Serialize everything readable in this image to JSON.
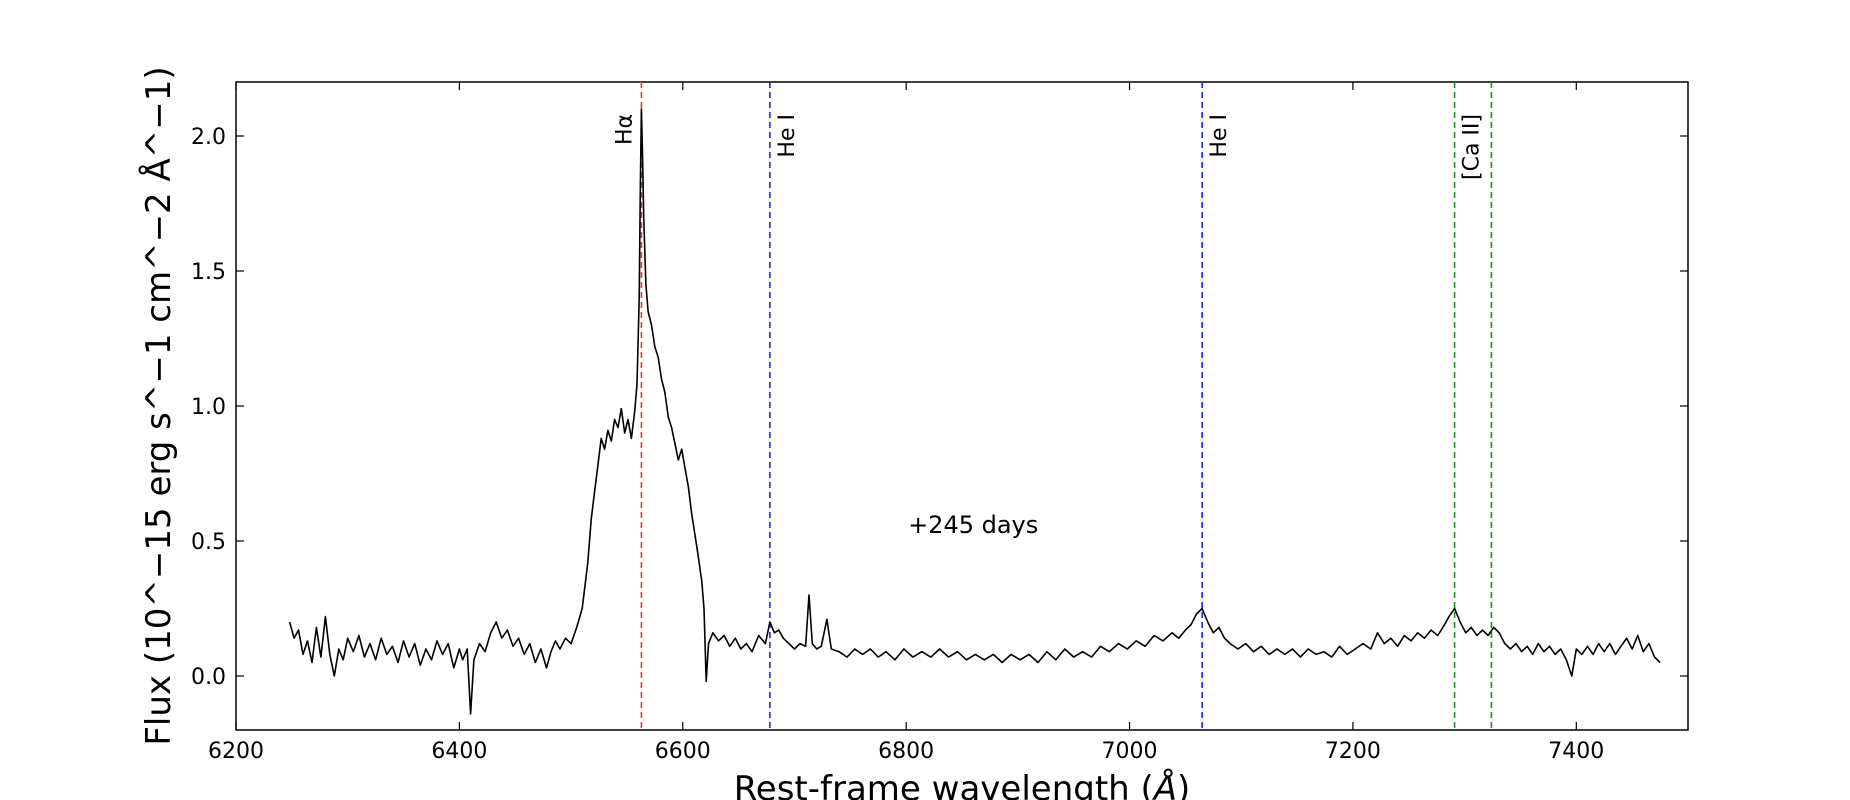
{
  "chart_data": {
    "type": "line",
    "xlabel": "Rest-frame wavelength",
    "xlabel_unit_symbol": "Å",
    "ylabel": "Flux",
    "ylabel_units": "10^−15 erg s^−1 cm^−2 Å^−1",
    "xlim": [
      6200,
      7500
    ],
    "ylim": [
      -0.2,
      2.2
    ],
    "xticks": [
      6200,
      6400,
      6600,
      6800,
      7000,
      7200,
      7400
    ],
    "yticks": [
      0.0,
      0.5,
      1.0,
      1.5,
      2.0
    ],
    "xtick_labels": [
      "6200",
      "6400",
      "6600",
      "6800",
      "7000",
      "7200",
      "7400"
    ],
    "ytick_labels": [
      "0.0",
      "0.5",
      "1.0",
      "1.5",
      "2.0"
    ],
    "grid": false,
    "annotation": {
      "text": "+245 days",
      "x": 6860,
      "y": 0.53
    },
    "reference_lines": [
      {
        "label": "Hα",
        "x": 6563,
        "color": "#e8343a",
        "label_side": "left"
      },
      {
        "label": "He I",
        "x": 6678,
        "color": "#2323e6",
        "label_side": "right"
      },
      {
        "label": "He I",
        "x": 7065,
        "color": "#2323e6",
        "label_side": "right"
      },
      {
        "label": "[Ca II]",
        "x": 7291,
        "color": "#228b22",
        "label_side": "right"
      },
      {
        "label": "",
        "x": 7324,
        "color": "#228b22",
        "label_side": "none"
      }
    ],
    "series": [
      {
        "color": "#000000",
        "points": [
          [
            6248,
            0.2
          ],
          [
            6252,
            0.14
          ],
          [
            6256,
            0.17
          ],
          [
            6260,
            0.08
          ],
          [
            6264,
            0.13
          ],
          [
            6268,
            0.05
          ],
          [
            6272,
            0.18
          ],
          [
            6276,
            0.07
          ],
          [
            6280,
            0.22
          ],
          [
            6284,
            0.08
          ],
          [
            6288,
            0.0
          ],
          [
            6292,
            0.1
          ],
          [
            6296,
            0.06
          ],
          [
            6300,
            0.14
          ],
          [
            6305,
            0.09
          ],
          [
            6310,
            0.15
          ],
          [
            6315,
            0.07
          ],
          [
            6320,
            0.12
          ],
          [
            6325,
            0.06
          ],
          [
            6330,
            0.14
          ],
          [
            6335,
            0.08
          ],
          [
            6340,
            0.11
          ],
          [
            6345,
            0.05
          ],
          [
            6350,
            0.13
          ],
          [
            6355,
            0.07
          ],
          [
            6360,
            0.12
          ],
          [
            6365,
            0.04
          ],
          [
            6370,
            0.1
          ],
          [
            6375,
            0.06
          ],
          [
            6380,
            0.13
          ],
          [
            6385,
            0.08
          ],
          [
            6390,
            0.12
          ],
          [
            6395,
            0.03
          ],
          [
            6400,
            0.1
          ],
          [
            6403,
            0.06
          ],
          [
            6407,
            0.1
          ],
          [
            6410,
            -0.14
          ],
          [
            6413,
            0.06
          ],
          [
            6418,
            0.12
          ],
          [
            6423,
            0.09
          ],
          [
            6428,
            0.16
          ],
          [
            6433,
            0.2
          ],
          [
            6438,
            0.14
          ],
          [
            6443,
            0.17
          ],
          [
            6448,
            0.11
          ],
          [
            6453,
            0.14
          ],
          [
            6458,
            0.08
          ],
          [
            6463,
            0.12
          ],
          [
            6468,
            0.05
          ],
          [
            6473,
            0.1
          ],
          [
            6478,
            0.03
          ],
          [
            6482,
            0.09
          ],
          [
            6486,
            0.13
          ],
          [
            6490,
            0.1
          ],
          [
            6495,
            0.14
          ],
          [
            6500,
            0.12
          ],
          [
            6505,
            0.18
          ],
          [
            6510,
            0.25
          ],
          [
            6515,
            0.42
          ],
          [
            6518,
            0.58
          ],
          [
            6521,
            0.68
          ],
          [
            6524,
            0.78
          ],
          [
            6527,
            0.88
          ],
          [
            6530,
            0.84
          ],
          [
            6533,
            0.91
          ],
          [
            6536,
            0.87
          ],
          [
            6539,
            0.95
          ],
          [
            6542,
            0.92
          ],
          [
            6545,
            0.99
          ],
          [
            6548,
            0.9
          ],
          [
            6551,
            0.95
          ],
          [
            6554,
            0.88
          ],
          [
            6557,
            0.98
          ],
          [
            6559,
            1.08
          ],
          [
            6561,
            1.4
          ],
          [
            6562,
            1.8
          ],
          [
            6563,
            2.1
          ],
          [
            6564,
            1.92
          ],
          [
            6565,
            1.7
          ],
          [
            6567,
            1.45
          ],
          [
            6569,
            1.35
          ],
          [
            6572,
            1.3
          ],
          [
            6575,
            1.22
          ],
          [
            6578,
            1.18
          ],
          [
            6581,
            1.1
          ],
          [
            6584,
            1.05
          ],
          [
            6587,
            0.96
          ],
          [
            6590,
            0.92
          ],
          [
            6593,
            0.86
          ],
          [
            6596,
            0.8
          ],
          [
            6599,
            0.84
          ],
          [
            6602,
            0.77
          ],
          [
            6605,
            0.7
          ],
          [
            6608,
            0.6
          ],
          [
            6611,
            0.52
          ],
          [
            6614,
            0.44
          ],
          [
            6617,
            0.35
          ],
          [
            6619,
            0.25
          ],
          [
            6621,
            -0.02
          ],
          [
            6623,
            0.12
          ],
          [
            6627,
            0.16
          ],
          [
            6632,
            0.13
          ],
          [
            6637,
            0.15
          ],
          [
            6642,
            0.11
          ],
          [
            6647,
            0.14
          ],
          [
            6652,
            0.1
          ],
          [
            6657,
            0.12
          ],
          [
            6662,
            0.09
          ],
          [
            6668,
            0.15
          ],
          [
            6674,
            0.12
          ],
          [
            6678,
            0.2
          ],
          [
            6682,
            0.16
          ],
          [
            6686,
            0.17
          ],
          [
            6690,
            0.14
          ],
          [
            6695,
            0.12
          ],
          [
            6700,
            0.1
          ],
          [
            6705,
            0.12
          ],
          [
            6710,
            0.11
          ],
          [
            6713,
            0.3
          ],
          [
            6716,
            0.12
          ],
          [
            6720,
            0.1
          ],
          [
            6724,
            0.11
          ],
          [
            6729,
            0.21
          ],
          [
            6733,
            0.1
          ],
          [
            6740,
            0.09
          ],
          [
            6747,
            0.07
          ],
          [
            6754,
            0.1
          ],
          [
            6761,
            0.08
          ],
          [
            6768,
            0.1
          ],
          [
            6775,
            0.07
          ],
          [
            6782,
            0.09
          ],
          [
            6790,
            0.06
          ],
          [
            6798,
            0.1
          ],
          [
            6806,
            0.07
          ],
          [
            6814,
            0.09
          ],
          [
            6822,
            0.07
          ],
          [
            6830,
            0.1
          ],
          [
            6838,
            0.07
          ],
          [
            6846,
            0.09
          ],
          [
            6854,
            0.06
          ],
          [
            6862,
            0.08
          ],
          [
            6870,
            0.06
          ],
          [
            6878,
            0.08
          ],
          [
            6886,
            0.05
          ],
          [
            6894,
            0.08
          ],
          [
            6902,
            0.06
          ],
          [
            6910,
            0.08
          ],
          [
            6918,
            0.05
          ],
          [
            6926,
            0.09
          ],
          [
            6934,
            0.06
          ],
          [
            6942,
            0.1
          ],
          [
            6950,
            0.07
          ],
          [
            6958,
            0.09
          ],
          [
            6966,
            0.07
          ],
          [
            6974,
            0.11
          ],
          [
            6982,
            0.09
          ],
          [
            6990,
            0.12
          ],
          [
            6998,
            0.1
          ],
          [
            7006,
            0.13
          ],
          [
            7014,
            0.11
          ],
          [
            7022,
            0.15
          ],
          [
            7030,
            0.13
          ],
          [
            7038,
            0.16
          ],
          [
            7044,
            0.14
          ],
          [
            7050,
            0.17
          ],
          [
            7055,
            0.19
          ],
          [
            7060,
            0.23
          ],
          [
            7065,
            0.25
          ],
          [
            7070,
            0.2
          ],
          [
            7075,
            0.16
          ],
          [
            7080,
            0.18
          ],
          [
            7085,
            0.14
          ],
          [
            7090,
            0.12
          ],
          [
            7097,
            0.1
          ],
          [
            7104,
            0.12
          ],
          [
            7111,
            0.09
          ],
          [
            7118,
            0.11
          ],
          [
            7125,
            0.08
          ],
          [
            7132,
            0.1
          ],
          [
            7139,
            0.08
          ],
          [
            7146,
            0.1
          ],
          [
            7153,
            0.07
          ],
          [
            7160,
            0.1
          ],
          [
            7167,
            0.08
          ],
          [
            7174,
            0.09
          ],
          [
            7181,
            0.07
          ],
          [
            7188,
            0.11
          ],
          [
            7195,
            0.08
          ],
          [
            7202,
            0.1
          ],
          [
            7209,
            0.12
          ],
          [
            7216,
            0.1
          ],
          [
            7222,
            0.16
          ],
          [
            7228,
            0.12
          ],
          [
            7234,
            0.14
          ],
          [
            7240,
            0.11
          ],
          [
            7246,
            0.15
          ],
          [
            7252,
            0.13
          ],
          [
            7258,
            0.16
          ],
          [
            7264,
            0.14
          ],
          [
            7270,
            0.17
          ],
          [
            7276,
            0.15
          ],
          [
            7282,
            0.19
          ],
          [
            7286,
            0.22
          ],
          [
            7291,
            0.25
          ],
          [
            7296,
            0.2
          ],
          [
            7301,
            0.16
          ],
          [
            7306,
            0.18
          ],
          [
            7311,
            0.15
          ],
          [
            7316,
            0.17
          ],
          [
            7321,
            0.15
          ],
          [
            7326,
            0.18
          ],
          [
            7331,
            0.16
          ],
          [
            7336,
            0.12
          ],
          [
            7341,
            0.1
          ],
          [
            7346,
            0.12
          ],
          [
            7351,
            0.09
          ],
          [
            7356,
            0.11
          ],
          [
            7361,
            0.08
          ],
          [
            7366,
            0.12
          ],
          [
            7371,
            0.09
          ],
          [
            7376,
            0.11
          ],
          [
            7381,
            0.08
          ],
          [
            7386,
            0.1
          ],
          [
            7391,
            0.06
          ],
          [
            7396,
            0.0
          ],
          [
            7400,
            0.1
          ],
          [
            7405,
            0.08
          ],
          [
            7410,
            0.11
          ],
          [
            7415,
            0.08
          ],
          [
            7420,
            0.12
          ],
          [
            7425,
            0.09
          ],
          [
            7430,
            0.12
          ],
          [
            7435,
            0.08
          ],
          [
            7440,
            0.11
          ],
          [
            7445,
            0.14
          ],
          [
            7450,
            0.1
          ],
          [
            7455,
            0.15
          ],
          [
            7460,
            0.09
          ],
          [
            7465,
            0.12
          ],
          [
            7470,
            0.07
          ],
          [
            7475,
            0.05
          ]
        ]
      }
    ]
  }
}
